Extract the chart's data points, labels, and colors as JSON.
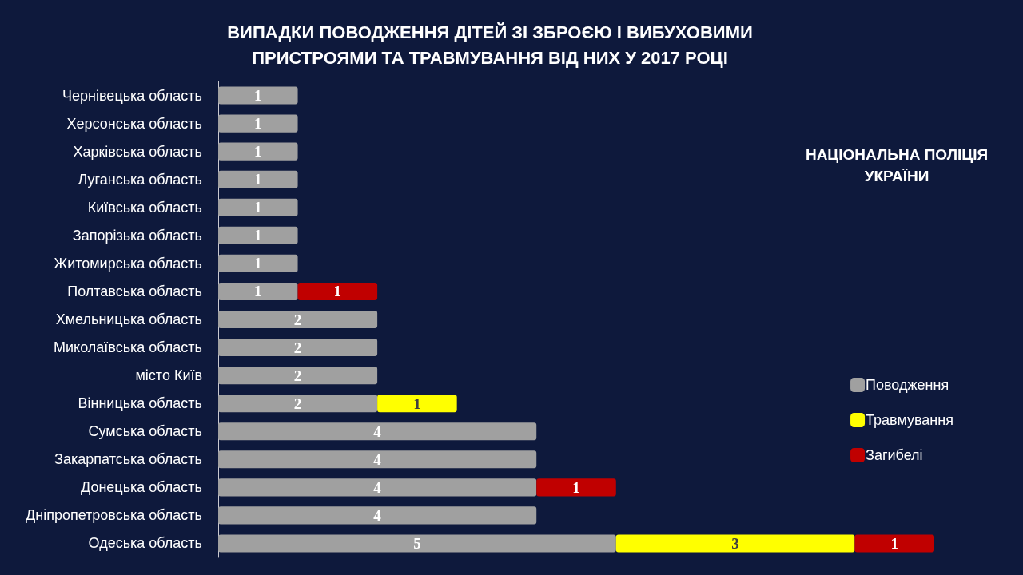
{
  "chart_data": {
    "type": "bar",
    "orientation": "horizontal",
    "stacked": true,
    "title": "ВИПАДКИ ПОВОДЖЕННЯ ДІТЕЙ ЗІ ЗБРОЄЮ І ВИБУХОВИМИ\nПРИСТРОЯМИ ТА ТРАВМУВАННЯ ВІД НИХ У 2017 РОЦІ",
    "annotations": [
      "НАЦІОНАЛЬНА ПОЛІЦІЯ\nУКРАЇНИ"
    ],
    "categories": [
      "Чернівецька область",
      "Херсонська область",
      "Харківська область",
      "Луганська область",
      "Київська область",
      "Запорізька область",
      "Житомирська область",
      "Полтавська область",
      "Хмельницька область",
      "Миколаївська область",
      "місто Київ",
      "Вінницька область",
      "Сумська область",
      "Закарпатська область",
      "Донецька область",
      "Дніпропетровська область",
      "Одеська область"
    ],
    "series": [
      {
        "name": "Поводження",
        "color": "#a0a0a0",
        "values": [
          1,
          1,
          1,
          1,
          1,
          1,
          1,
          1,
          2,
          2,
          2,
          2,
          4,
          4,
          4,
          4,
          5
        ]
      },
      {
        "name": "Травмування",
        "color": "#ffff00",
        "values": [
          null,
          null,
          null,
          null,
          null,
          null,
          null,
          null,
          null,
          null,
          null,
          1,
          null,
          null,
          null,
          null,
          3
        ]
      },
      {
        "name": "Загибелі",
        "color": "#c00000",
        "values": [
          null,
          null,
          null,
          null,
          null,
          null,
          null,
          1,
          null,
          null,
          null,
          null,
          null,
          null,
          1,
          null,
          1
        ]
      }
    ],
    "xlim": [
      0,
      9
    ],
    "data_labels": true,
    "legend": "right",
    "tick_labels": "y",
    "grid": false
  }
}
